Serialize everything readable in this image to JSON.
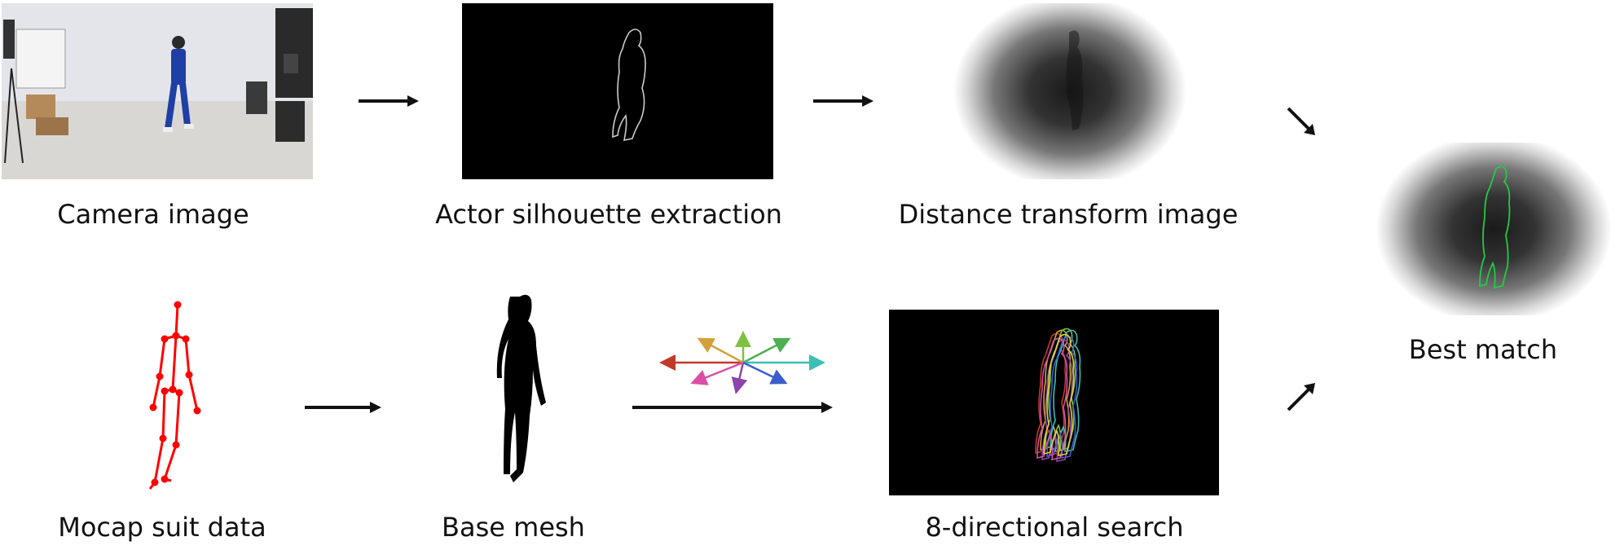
{
  "captions": {
    "camera": "Camera image",
    "silhouette": "Actor silhouette extraction",
    "distance": "Distance transform image",
    "best": "Best match",
    "mocap": "Mocap suit data",
    "mesh": "Base mesh",
    "search": "8-directional search"
  },
  "colors": {
    "arrow": "#111111",
    "skeleton": "#ff0000",
    "silhouette_outline": "#cccccc",
    "best_outline": "#22cc44",
    "search_directions": [
      "#c0392b",
      "#d4a03a",
      "#7fc241",
      "#3cbfb5",
      "#3a5fcd",
      "#8e44ad",
      "#d94fa6",
      "#e0d040"
    ]
  },
  "icons": {
    "arrow": "right-arrow-icon",
    "direction_star": "eight-direction-icon"
  }
}
